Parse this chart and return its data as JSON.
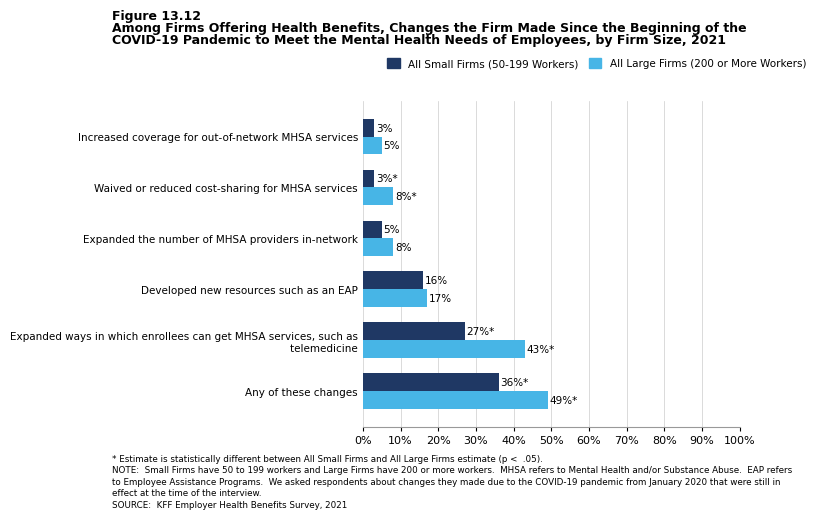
{
  "title_line1": "Figure 13.12",
  "title_line2": "Among Firms Offering Health Benefits, Changes the Firm Made Since the Beginning of the",
  "title_line3": "COVID-19 Pandemic to Meet the Mental Health Needs of Employees, by Firm Size, 2021",
  "categories": [
    "Any of these changes",
    "Expanded ways in which enrollees can get MHSA services, such as\n    telemedicine",
    "Developed new resources such as an EAP",
    "Expanded the number of MHSA providers in-network",
    "Waived or reduced cost-sharing for MHSA services",
    "Increased coverage for out-of-network MHSA services"
  ],
  "small_firms": [
    36,
    27,
    16,
    5,
    3,
    3
  ],
  "large_firms": [
    49,
    43,
    17,
    8,
    8,
    5
  ],
  "small_labels": [
    "36%*",
    "27%*",
    "16%",
    "5%",
    "3%*",
    "3%"
  ],
  "large_labels": [
    "49%*",
    "43%*",
    "17%",
    "8%",
    "8%*",
    "5%"
  ],
  "small_color": "#1f3864",
  "large_color": "#47b5e6",
  "legend_small": "All Small Firms (50-199 Workers)",
  "legend_large": "All Large Firms (200 or More Workers)",
  "xlim": [
    0,
    100
  ],
  "xticks": [
    0,
    10,
    20,
    30,
    40,
    50,
    60,
    70,
    80,
    90,
    100
  ],
  "xticklabels": [
    "0%",
    "10%",
    "20%",
    "30%",
    "40%",
    "50%",
    "60%",
    "70%",
    "80%",
    "90%",
    "100%"
  ],
  "footnote1": "* Estimate is statistically different between All Small Firms and All Large Firms estimate (p <  .05).",
  "footnote2": "NOTE:  Small Firms have 50 to 199 workers and Large Firms have 200 or more workers.  MHSA refers to Mental Health and/or Substance Abuse.  EAP refers",
  "footnote3": "to Employee Assistance Programs.  We asked respondents about changes they made due to the COVID-19 pandemic from January 2020 that were still in",
  "footnote4": "effect at the time of the interview.",
  "footnote5": "SOURCE:  KFF Employer Health Benefits Survey, 2021",
  "bar_height": 0.35,
  "background_color": "#ffffff"
}
